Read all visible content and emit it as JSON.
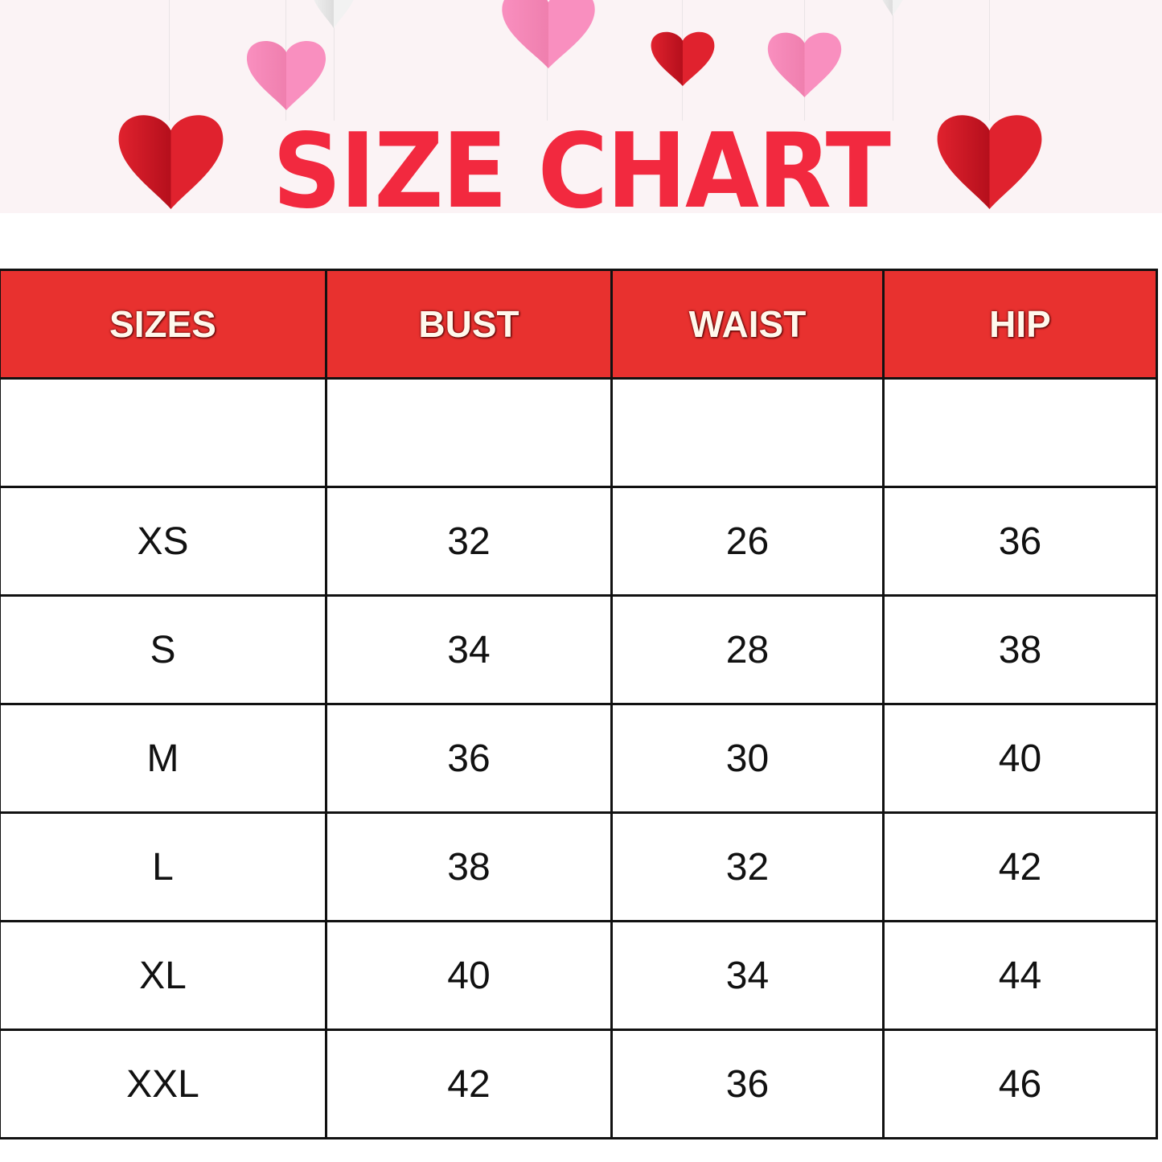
{
  "title": "SIZE CHART",
  "colors": {
    "title": "#f2293f",
    "header_bg": "#e8312f",
    "heart_red": "#e0222e",
    "heart_pink": "#f98fbf",
    "banner_bg": "#fbf3f5"
  },
  "table": {
    "headers": [
      "SIZES",
      "BUST",
      "WAIST",
      "HIP"
    ],
    "rows": [
      [
        "",
        "",
        "",
        ""
      ],
      [
        "XS",
        "32",
        "26",
        "36"
      ],
      [
        "S",
        "34",
        "28",
        "38"
      ],
      [
        "M",
        "36",
        "30",
        "40"
      ],
      [
        "L",
        "38",
        "32",
        "42"
      ],
      [
        "XL",
        "40",
        "34",
        "44"
      ],
      [
        "XXL",
        "42",
        "36",
        "46"
      ]
    ]
  }
}
